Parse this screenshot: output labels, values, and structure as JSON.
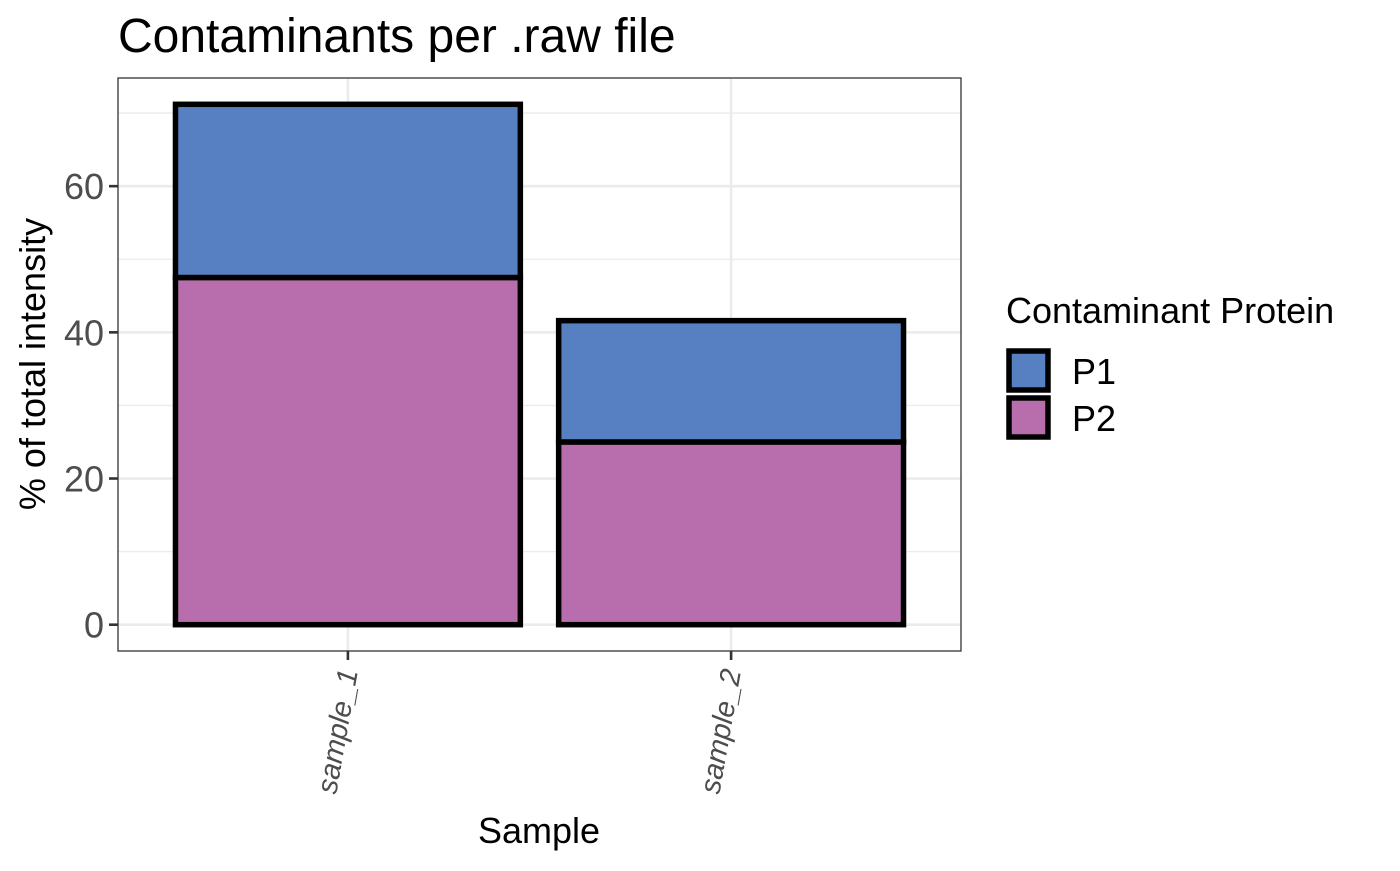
{
  "chart_data": {
    "type": "bar",
    "stacked": true,
    "title": "Contaminants per .raw file",
    "xlabel": "Sample",
    "ylabel": "% of total intensity",
    "categories": [
      "sample_1",
      "sample_2"
    ],
    "series": [
      {
        "name": "P2",
        "values": [
          47.5,
          25.0
        ],
        "color": "#b86eac"
      },
      {
        "name": "P1",
        "values": [
          23.7,
          16.6
        ],
        "color": "#5680c2"
      }
    ],
    "ylim": [
      -3.6,
      74.8
    ],
    "yticks": [
      0,
      20,
      40,
      60
    ],
    "grid": true,
    "legend": {
      "title": "Contaminant Protein",
      "position": "right",
      "items": [
        "P1",
        "P2"
      ]
    }
  }
}
